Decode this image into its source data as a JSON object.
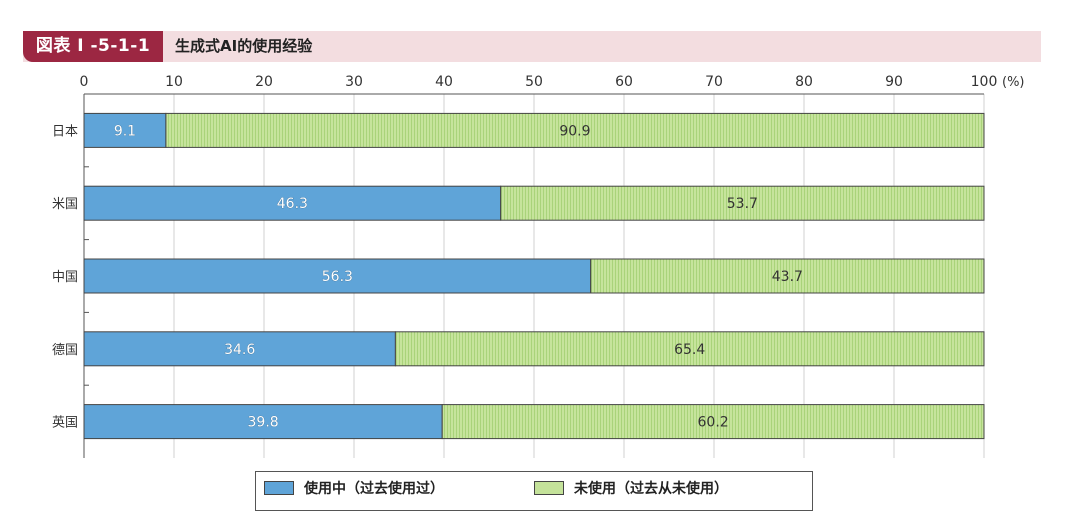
{
  "figure": {
    "tag": "図表 I -5-1-1",
    "title": "生成式AI的使用经验"
  },
  "chart_data": {
    "type": "bar",
    "orientation": "horizontal",
    "stacked": true,
    "categories": [
      "日本",
      "米国",
      "中国",
      "德国",
      "英国"
    ],
    "series": [
      {
        "name": "使用中（过去使用过）",
        "values": [
          9.1,
          46.3,
          56.3,
          34.6,
          39.8
        ],
        "color": "#5fa4d8"
      },
      {
        "name": "未使用（过去从未使用）",
        "values": [
          90.9,
          53.7,
          43.7,
          65.4,
          60.2
        ],
        "color": "#c4e29a"
      }
    ],
    "xlim": [
      0,
      100
    ],
    "xticks": [
      0,
      10,
      20,
      30,
      40,
      50,
      60,
      70,
      80,
      90,
      100
    ],
    "x_unit": "(%)",
    "grid": true,
    "legend_position": "bottom"
  }
}
